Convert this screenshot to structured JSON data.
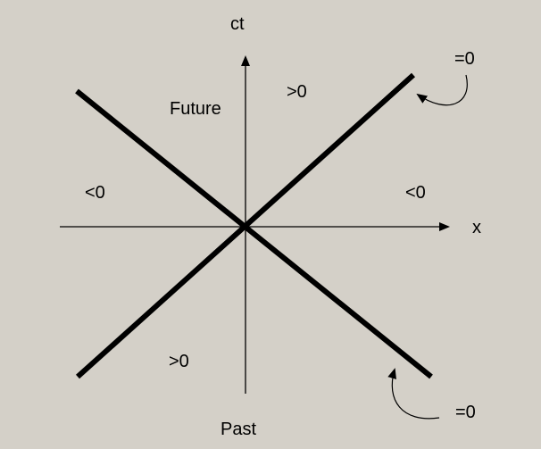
{
  "labels": {
    "t_axis": "ct",
    "x_axis": "x",
    "future": "Future",
    "past": "Past",
    "future_region": ">0",
    "past_region": ">0",
    "left_region": "<0",
    "right_region": "<0",
    "lightcone_top": "=0",
    "lightcone_bottom": "=0"
  },
  "colors": {
    "background": "#d4d0c8",
    "ink": "#000000"
  }
}
